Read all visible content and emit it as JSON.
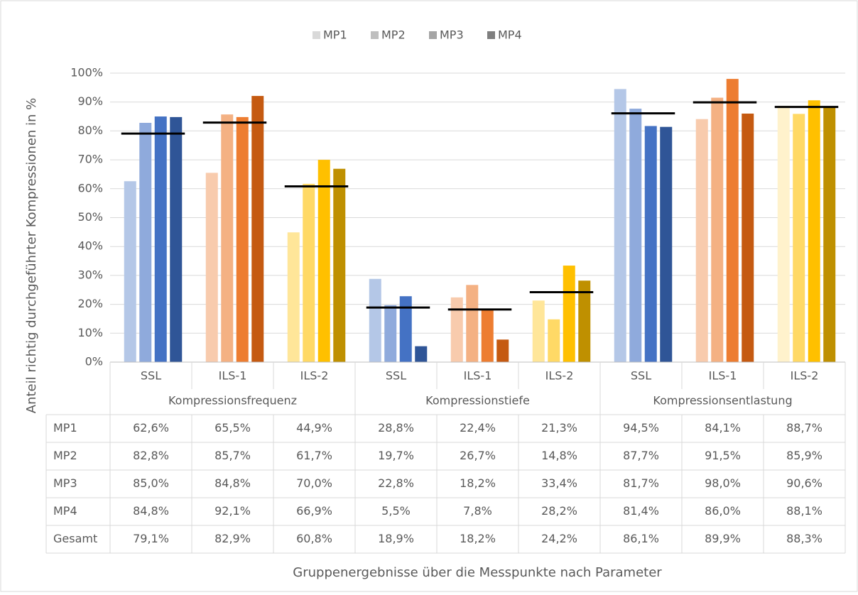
{
  "chart_data": {
    "type": "bar",
    "ylabel": "Anteil richtig durchgeführter Kompressionen in %",
    "xlabel": "Gruppenergebnisse über die Messpunkte nach Parameter",
    "categories": [
      "SSL",
      "ILS-1",
      "ILS-2",
      "SSL",
      "ILS-1",
      "ILS-2",
      "SSL",
      "ILS-1",
      "ILS-2"
    ],
    "group_labels": [
      "Kompressionsfrequenz",
      "Kompressionstiefe",
      "Kompressionsentlastung"
    ],
    "series": [
      {
        "name": "MP1",
        "color": "#d9d9d9",
        "values": [
          62.6,
          65.5,
          44.9,
          28.8,
          22.4,
          21.3,
          94.5,
          84.1,
          88.7
        ],
        "value_labels": [
          "62,6%",
          "65,5%",
          "44,9%",
          "28,8%",
          "22,4%",
          "21,3%",
          "94,5%",
          "84,1%",
          "88,7%"
        ]
      },
      {
        "name": "MP2",
        "color": "#bfbfbf",
        "values": [
          82.8,
          85.7,
          61.7,
          19.7,
          26.7,
          14.8,
          87.7,
          91.5,
          85.9
        ],
        "value_labels": [
          "82,8%",
          "85,7%",
          "61,7%",
          "19,7%",
          "26,7%",
          "14,8%",
          "87,7%",
          "91,5%",
          "85,9%"
        ]
      },
      {
        "name": "MP3",
        "color": "#a5a5a5",
        "values": [
          85.0,
          84.8,
          70.0,
          22.8,
          18.2,
          33.4,
          81.7,
          98.0,
          90.6
        ],
        "value_labels": [
          "85,0%",
          "84,8%",
          "70,0%",
          "22,8%",
          "18,2%",
          "33,4%",
          "81,7%",
          "98,0%",
          "90,6%"
        ]
      },
      {
        "name": "MP4",
        "color": "#7f7f7f",
        "values": [
          84.8,
          92.1,
          66.9,
          5.5,
          7.8,
          28.2,
          81.4,
          86.0,
          88.1
        ],
        "value_labels": [
          "84,8%",
          "92,1%",
          "66,9%",
          "5,5%",
          "7,8%",
          "28,2%",
          "81,4%",
          "86,0%",
          "88,1%"
        ]
      }
    ],
    "total": {
      "name": "Gesamt",
      "color": "#000000",
      "values": [
        79.1,
        82.9,
        60.8,
        18.9,
        18.2,
        24.2,
        86.1,
        89.9,
        88.3
      ],
      "value_labels": [
        "79,1%",
        "82,9%",
        "60,8%",
        "18,9%",
        "18,2%",
        "24,2%",
        "86,1%",
        "89,9%",
        "88,3%"
      ]
    },
    "bar_colors": [
      [
        "#b4c7e7",
        "#8faadc",
        "#4472c4",
        "#2f5597"
      ],
      [
        "#f8cbad",
        "#f4b183",
        "#ed7d31",
        "#c55a11"
      ],
      [
        "#ffe699",
        "#ffd966",
        "#ffc000",
        "#bf9000"
      ],
      [
        "#b4c7e7",
        "#8faadc",
        "#4472c4",
        "#2f5597"
      ],
      [
        "#f8cbad",
        "#f4b183",
        "#ed7d31",
        "#c55a11"
      ],
      [
        "#ffe699",
        "#ffd966",
        "#ffc000",
        "#bf9000"
      ],
      [
        "#b4c7e7",
        "#8faadc",
        "#4472c4",
        "#2f5597"
      ],
      [
        "#f8cbad",
        "#f4b183",
        "#ed7d31",
        "#c55a11"
      ],
      [
        "#fff2cc",
        "#ffd966",
        "#ffc000",
        "#bf9000"
      ]
    ],
    "ylim": [
      0,
      100
    ],
    "yticks": [
      {
        "value": 0,
        "label": "0%"
      },
      {
        "value": 10,
        "label": "10%"
      },
      {
        "value": 20,
        "label": "20%"
      },
      {
        "value": 30,
        "label": "30%"
      },
      {
        "value": 40,
        "label": "40%"
      },
      {
        "value": 50,
        "label": "50%"
      },
      {
        "value": 60,
        "label": "60%"
      },
      {
        "value": 70,
        "label": "70%"
      },
      {
        "value": 80,
        "label": "80%"
      },
      {
        "value": 90,
        "label": "90%"
      },
      {
        "value": 100,
        "label": "100%"
      }
    ],
    "grid": true,
    "legend": "top"
  }
}
